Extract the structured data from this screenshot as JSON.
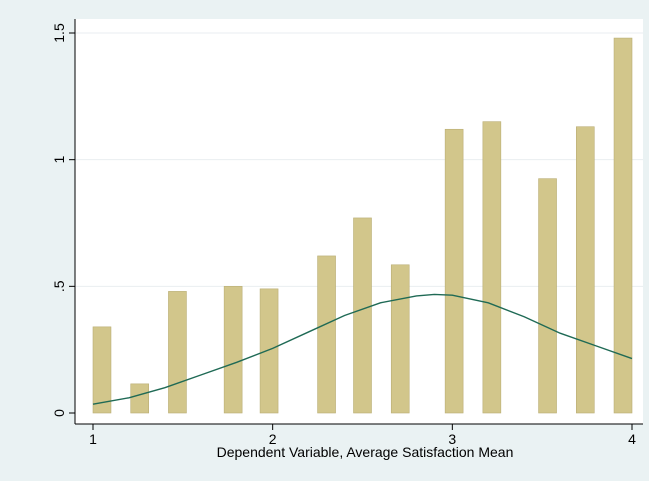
{
  "colors": {
    "background": "#eaf2f3",
    "plot_background": "#ffffff",
    "bar_fill": "#d2c68b",
    "bar_stroke": "#b9ad74",
    "curve": "#1f6a55",
    "gridline": "#e9eef0",
    "axis": "#000000"
  },
  "chart_data": {
    "type": "bar",
    "title": "",
    "xlabel": "Dependent Variable, Average Satisfaction Mean",
    "ylabel": "",
    "xlim": [
      0.94,
      4.06
    ],
    "ylim": [
      0,
      1.5
    ],
    "x_ticks": [
      1,
      2,
      3,
      4
    ],
    "x_tick_labels": [
      "1",
      "2",
      "3",
      "4"
    ],
    "y_ticks": [
      0,
      0.5,
      1,
      1.5
    ],
    "y_tick_labels": [
      "0",
      ".5",
      "1",
      "1.5"
    ],
    "grid": true,
    "bar_width": 0.1,
    "bars": {
      "x": [
        1.05,
        1.26,
        1.47,
        1.78,
        1.98,
        2.3,
        2.5,
        2.71,
        3.01,
        3.22,
        3.53,
        3.74,
        3.95
      ],
      "values": [
        0.34,
        0.115,
        0.48,
        0.5,
        0.49,
        0.62,
        0.77,
        0.585,
        1.12,
        1.15,
        0.925,
        1.13,
        1.48
      ]
    },
    "curve": {
      "type": "line",
      "x": [
        1.0,
        1.2,
        1.4,
        1.6,
        1.8,
        2.0,
        2.2,
        2.4,
        2.6,
        2.8,
        2.9,
        3.0,
        3.2,
        3.4,
        3.6,
        3.8,
        4.0
      ],
      "values": [
        0.035,
        0.06,
        0.1,
        0.15,
        0.2,
        0.255,
        0.32,
        0.385,
        0.435,
        0.462,
        0.468,
        0.465,
        0.435,
        0.38,
        0.315,
        0.265,
        0.215
      ]
    }
  }
}
